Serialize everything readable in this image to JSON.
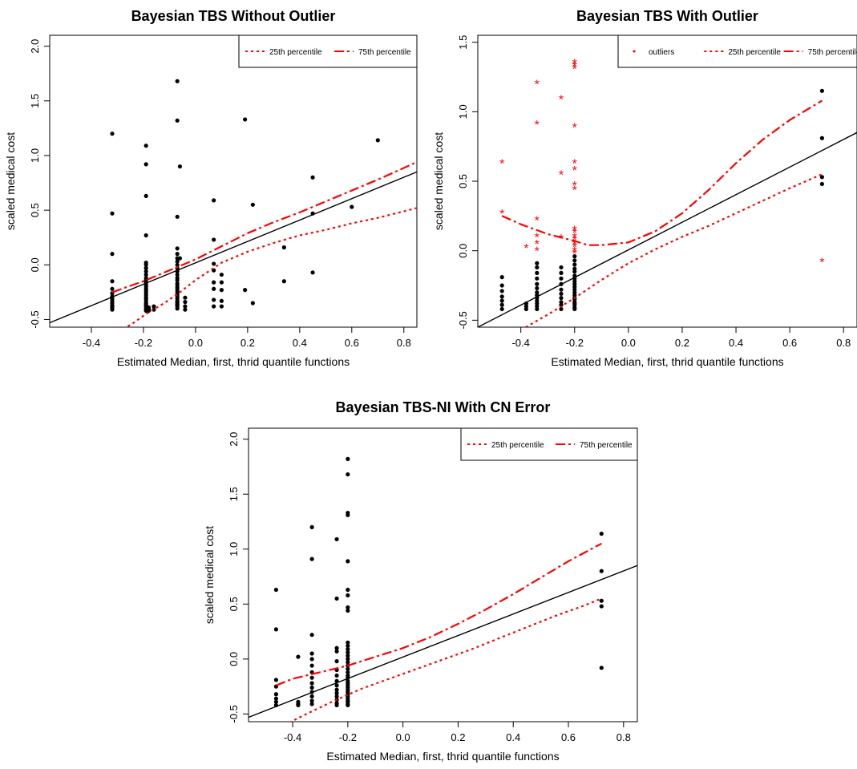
{
  "chart_data": [
    {
      "type": "scatter",
      "title": "Bayesian TBS Without Outlier",
      "xlabel": "Estimated Median, first, thrid quantile functions",
      "ylabel": "scaled medical cost",
      "xlim": [
        -0.56,
        0.85
      ],
      "ylim": [
        -0.57,
        2.1
      ],
      "xticks": [
        "-0.4",
        "-0.2",
        "0.0",
        "0.2",
        "0.4",
        "0.6",
        "0.8"
      ],
      "yticks": [
        "-0.5",
        "0.0",
        "0.5",
        "1.0",
        "1.5",
        "2.0"
      ],
      "legend": {
        "position": "top-right",
        "entries": [
          {
            "label": "25th percentile",
            "style": "dotted",
            "color": "#ff0000"
          },
          {
            "label": "75th percentile",
            "style": "dashdot",
            "color": "#ff0000"
          }
        ]
      },
      "series": [
        {
          "kind": "points",
          "color": "#000000",
          "x": [
            -0.32,
            -0.32,
            -0.32,
            -0.32,
            -0.32,
            -0.32,
            -0.32,
            -0.32,
            -0.32,
            -0.32,
            -0.32,
            -0.32,
            -0.32,
            -0.32,
            -0.32,
            -0.19,
            -0.19,
            -0.19,
            -0.19,
            -0.19,
            -0.19,
            -0.19,
            -0.19,
            -0.19,
            -0.19,
            -0.19,
            -0.19,
            -0.19,
            -0.19,
            -0.19,
            -0.19,
            -0.19,
            -0.19,
            -0.19,
            -0.19,
            -0.19,
            -0.19,
            -0.19,
            -0.19,
            -0.19,
            -0.19,
            -0.19,
            -0.19,
            -0.18,
            -0.18,
            -0.18,
            -0.18,
            -0.16,
            -0.16,
            -0.07,
            -0.07,
            -0.07,
            -0.07,
            -0.07,
            -0.07,
            -0.07,
            -0.07,
            -0.07,
            -0.07,
            -0.07,
            -0.07,
            -0.07,
            -0.07,
            -0.07,
            -0.07,
            -0.07,
            -0.07,
            -0.07,
            -0.07,
            -0.07,
            -0.07,
            -0.07,
            -0.07,
            -0.07,
            -0.07,
            -0.07,
            -0.07,
            -0.06,
            -0.06,
            -0.04,
            -0.04,
            -0.04,
            -0.04,
            0.07,
            0.07,
            0.07,
            0.07,
            0.07,
            0.07,
            0.07,
            0.07,
            0.1,
            0.1,
            0.1,
            0.1,
            0.1,
            0.19,
            0.19,
            0.22,
            0.22,
            0.34,
            0.34,
            0.45,
            0.45,
            0.45,
            0.6,
            0.7
          ],
          "y": [
            1.2,
            0.47,
            0.1,
            -0.15,
            -0.22,
            -0.26,
            -0.29,
            -0.31,
            -0.33,
            -0.35,
            -0.37,
            -0.38,
            -0.39,
            -0.4,
            -0.41,
            1.09,
            0.92,
            0.63,
            0.27,
            0.02,
            0.0,
            -0.03,
            -0.06,
            -0.09,
            -0.12,
            -0.14,
            -0.16,
            -0.18,
            -0.2,
            -0.22,
            -0.24,
            -0.26,
            -0.28,
            -0.3,
            -0.31,
            -0.33,
            -0.35,
            -0.36,
            -0.37,
            -0.38,
            -0.4,
            -0.41,
            -0.42,
            -0.39,
            -0.4,
            -0.41,
            -0.42,
            -0.38,
            -0.41,
            1.68,
            1.32,
            0.44,
            0.15,
            0.1,
            0.06,
            0.03,
            0.0,
            -0.03,
            -0.06,
            -0.09,
            -0.12,
            -0.14,
            -0.17,
            -0.19,
            -0.21,
            -0.23,
            -0.25,
            -0.27,
            -0.29,
            -0.31,
            -0.33,
            -0.34,
            -0.35,
            -0.36,
            -0.37,
            -0.38,
            -0.4,
            0.9,
            0.06,
            -0.3,
            -0.34,
            -0.38,
            -0.41,
            0.59,
            0.23,
            0.01,
            -0.05,
            -0.16,
            -0.22,
            -0.32,
            -0.38,
            -0.09,
            -0.16,
            -0.23,
            -0.33,
            -0.38,
            1.33,
            -0.23,
            0.55,
            -0.35,
            0.16,
            -0.15,
            0.8,
            0.47,
            -0.07,
            0.53,
            1.14
          ]
        },
        {
          "kind": "line",
          "name": "",
          "color": "#000000",
          "style": "solid",
          "x": [
            -0.56,
            0.85
          ],
          "y": [
            -0.53,
            0.85
          ]
        },
        {
          "kind": "line",
          "name": "25th percentile",
          "color": "#ff0000",
          "style": "dotted",
          "x": [
            -0.32,
            -0.25,
            -0.19,
            -0.12,
            -0.06,
            0.0,
            0.1,
            0.2,
            0.3,
            0.4,
            0.5,
            0.6,
            0.7,
            0.85
          ],
          "y": [
            -0.62,
            -0.55,
            -0.45,
            -0.35,
            -0.25,
            -0.14,
            0.02,
            0.12,
            0.2,
            0.27,
            0.32,
            0.38,
            0.43,
            0.52
          ]
        },
        {
          "kind": "line",
          "name": "75th percentile",
          "color": "#ff0000",
          "style": "dashdot",
          "x": [
            -0.32,
            -0.2,
            -0.1,
            0.0,
            0.1,
            0.2,
            0.3,
            0.4,
            0.5,
            0.6,
            0.7,
            0.85
          ],
          "y": [
            -0.25,
            -0.15,
            -0.05,
            0.05,
            0.17,
            0.29,
            0.39,
            0.48,
            0.58,
            0.68,
            0.78,
            0.94
          ]
        }
      ]
    },
    {
      "type": "scatter",
      "title": "Bayesian TBS With Outlier",
      "xlabel": "Estimated Median, first, thrid quantile functions",
      "ylabel": "scaled medical cost",
      "xlim": [
        -0.56,
        0.85
      ],
      "ylim": [
        -0.55,
        1.55
      ],
      "xticks": [
        "-0.4",
        "-0.2",
        "0.0",
        "0.2",
        "0.4",
        "0.6",
        "0.8"
      ],
      "yticks": [
        "-0.5",
        "0.0",
        "0.5",
        "1.0",
        "1.5"
      ],
      "legend": {
        "position": "top-right",
        "entries": [
          {
            "label": "outliers",
            "style": "point",
            "color": "#ff0000"
          },
          {
            "label": "25th percentile",
            "style": "dotted",
            "color": "#ff0000"
          },
          {
            "label": "75th percentile",
            "style": "dashdot",
            "color": "#ff0000"
          }
        ]
      },
      "series": [
        {
          "kind": "points",
          "color": "#000000",
          "x": [
            -0.47,
            -0.47,
            -0.47,
            -0.47,
            -0.47,
            -0.47,
            -0.47,
            -0.38,
            -0.38,
            -0.38,
            -0.34,
            -0.34,
            -0.34,
            -0.34,
            -0.34,
            -0.34,
            -0.34,
            -0.34,
            -0.34,
            -0.34,
            -0.34,
            -0.34,
            -0.34,
            -0.25,
            -0.25,
            -0.25,
            -0.25,
            -0.25,
            -0.25,
            -0.25,
            -0.25,
            -0.25,
            -0.25,
            -0.2,
            -0.2,
            -0.2,
            -0.2,
            -0.2,
            -0.2,
            -0.2,
            -0.2,
            -0.2,
            -0.2,
            -0.2,
            -0.2,
            -0.2,
            -0.2,
            -0.2,
            -0.2,
            -0.2,
            -0.2,
            -0.2,
            -0.2,
            0.72,
            0.72,
            0.72,
            0.72
          ],
          "y": [
            -0.19,
            -0.25,
            -0.29,
            -0.33,
            -0.36,
            -0.39,
            -0.42,
            -0.38,
            -0.4,
            -0.42,
            -0.09,
            -0.12,
            -0.16,
            -0.2,
            -0.24,
            -0.27,
            -0.3,
            -0.32,
            -0.34,
            -0.36,
            -0.38,
            -0.4,
            -0.42,
            -0.12,
            -0.16,
            -0.2,
            -0.24,
            -0.28,
            -0.31,
            -0.34,
            -0.37,
            -0.39,
            -0.42,
            -0.04,
            -0.07,
            -0.1,
            -0.13,
            -0.15,
            -0.18,
            -0.2,
            -0.22,
            -0.24,
            -0.26,
            -0.28,
            -0.3,
            -0.32,
            -0.34,
            -0.35,
            -0.37,
            -0.38,
            -0.39,
            -0.41,
            -0.42,
            1.15,
            0.81,
            0.53,
            0.48
          ]
        },
        {
          "kind": "points",
          "name": "outliers",
          "marker": "*",
          "color": "#ff0000",
          "x": [
            -0.47,
            -0.47,
            -0.38,
            -0.34,
            -0.34,
            -0.34,
            -0.34,
            -0.34,
            -0.34,
            -0.25,
            -0.25,
            -0.25,
            -0.2,
            -0.2,
            -0.2,
            -0.2,
            -0.2,
            -0.2,
            -0.2,
            -0.2,
            -0.2,
            -0.2,
            -0.2,
            -0.2,
            -0.2,
            -0.2,
            -0.2,
            -0.2,
            0.72
          ],
          "y": [
            0.63,
            0.27,
            0.02,
            1.2,
            0.91,
            0.22,
            0.1,
            0.05,
            0.0,
            1.09,
            0.55,
            0.09,
            1.35,
            1.33,
            1.31,
            0.89,
            0.63,
            0.58,
            0.47,
            0.44,
            0.15,
            0.13,
            0.1,
            0.08,
            0.05,
            0.03,
            0.0,
            -0.02,
            -0.08
          ]
        },
        {
          "kind": "line",
          "name": "",
          "color": "#000000",
          "style": "solid",
          "x": [
            -0.56,
            0.85
          ],
          "y": [
            -0.55,
            0.85
          ]
        },
        {
          "kind": "line",
          "name": "25th percentile",
          "color": "#ff0000",
          "style": "dotted",
          "x": [
            -0.4,
            -0.3,
            -0.2,
            -0.1,
            0.0,
            0.1,
            0.2,
            0.3,
            0.4,
            0.5,
            0.6,
            0.72
          ],
          "y": [
            -0.57,
            -0.46,
            -0.34,
            -0.21,
            -0.09,
            0.01,
            0.1,
            0.18,
            0.27,
            0.36,
            0.45,
            0.55
          ]
        },
        {
          "kind": "line",
          "name": "75th percentile",
          "color": "#ff0000",
          "style": "dashdot",
          "x": [
            -0.47,
            -0.4,
            -0.3,
            -0.2,
            -0.15,
            -0.1,
            0.0,
            0.1,
            0.2,
            0.3,
            0.4,
            0.5,
            0.6,
            0.72
          ],
          "y": [
            0.25,
            0.19,
            0.12,
            0.07,
            0.04,
            0.04,
            0.06,
            0.14,
            0.27,
            0.44,
            0.63,
            0.8,
            0.94,
            1.08
          ]
        }
      ]
    },
    {
      "type": "scatter",
      "title": "Bayesian TBS-NI With CN Error",
      "xlabel": "Estimated Median, first, thrid quantile functions",
      "ylabel": "scaled medical cost",
      "xlim": [
        -0.56,
        0.85
      ],
      "ylim": [
        -0.57,
        2.1
      ],
      "xticks": [
        "-0.4",
        "-0.2",
        "0.0",
        "0.2",
        "0.4",
        "0.6",
        "0.8"
      ],
      "yticks": [
        "-0.5",
        "0.0",
        "0.5",
        "1.0",
        "1.5",
        "2.0"
      ],
      "legend": {
        "position": "top-right",
        "entries": [
          {
            "label": "25th percentile",
            "style": "dotted",
            "color": "#ff0000"
          },
          {
            "label": "75th percentile",
            "style": "dashdot",
            "color": "#ff0000"
          }
        ]
      },
      "series": [
        {
          "kind": "points",
          "color": "#000000",
          "x": [
            -0.46,
            -0.46,
            -0.46,
            -0.46,
            -0.46,
            -0.46,
            -0.46,
            -0.46,
            -0.38,
            -0.38,
            -0.38,
            -0.38,
            -0.33,
            -0.33,
            -0.33,
            -0.33,
            -0.33,
            -0.33,
            -0.33,
            -0.33,
            -0.33,
            -0.33,
            -0.33,
            -0.33,
            -0.33,
            -0.33,
            -0.24,
            -0.24,
            -0.24,
            -0.24,
            -0.24,
            -0.24,
            -0.24,
            -0.24,
            -0.24,
            -0.24,
            -0.24,
            -0.24,
            -0.24,
            -0.24,
            -0.24,
            -0.2,
            -0.2,
            -0.2,
            -0.2,
            -0.2,
            -0.2,
            -0.2,
            -0.2,
            -0.2,
            -0.2,
            -0.2,
            -0.2,
            -0.2,
            -0.2,
            -0.2,
            -0.2,
            -0.2,
            -0.2,
            -0.2,
            -0.2,
            -0.2,
            -0.2,
            -0.2,
            -0.2,
            -0.2,
            -0.2,
            -0.2,
            -0.2,
            -0.2,
            -0.2,
            -0.2,
            -0.2,
            -0.2,
            -0.2,
            0.72,
            0.72,
            0.72,
            0.72,
            0.72
          ],
          "y": [
            0.63,
            0.27,
            -0.19,
            -0.25,
            -0.32,
            -0.36,
            -0.39,
            -0.42,
            0.02,
            -0.39,
            -0.41,
            -0.42,
            1.2,
            0.91,
            0.22,
            0.05,
            0.0,
            -0.06,
            -0.12,
            -0.17,
            -0.22,
            -0.26,
            -0.3,
            -0.34,
            -0.38,
            -0.41,
            1.09,
            0.55,
            0.1,
            0.07,
            -0.02,
            -0.1,
            -0.15,
            -0.2,
            -0.24,
            -0.28,
            -0.31,
            -0.34,
            -0.37,
            -0.4,
            -0.42,
            1.82,
            1.68,
            1.33,
            1.31,
            0.89,
            0.63,
            0.58,
            0.47,
            0.44,
            0.15,
            0.12,
            0.09,
            0.06,
            0.03,
            0.0,
            -0.03,
            -0.06,
            -0.09,
            -0.12,
            -0.15,
            -0.17,
            -0.2,
            -0.22,
            -0.24,
            -0.26,
            -0.28,
            -0.3,
            -0.32,
            -0.34,
            -0.36,
            -0.38,
            -0.39,
            -0.41,
            -0.42,
            1.14,
            0.8,
            0.53,
            0.48,
            -0.08
          ]
        },
        {
          "kind": "line",
          "name": "",
          "color": "#000000",
          "style": "solid",
          "x": [
            -0.56,
            0.85
          ],
          "y": [
            -0.53,
            0.85
          ]
        },
        {
          "kind": "line",
          "name": "25th percentile",
          "color": "#ff0000",
          "style": "dotted",
          "x": [
            -0.43,
            -0.35,
            -0.25,
            -0.15,
            -0.05,
            0.05,
            0.15,
            0.25,
            0.35,
            0.45,
            0.55,
            0.65,
            0.72
          ],
          "y": [
            -0.6,
            -0.5,
            -0.38,
            -0.27,
            -0.18,
            -0.09,
            0.0,
            0.09,
            0.19,
            0.29,
            0.39,
            0.48,
            0.55
          ]
        },
        {
          "kind": "line",
          "name": "75th percentile",
          "color": "#ff0000",
          "style": "dashdot",
          "x": [
            -0.46,
            -0.4,
            -0.3,
            -0.2,
            -0.1,
            0.0,
            0.1,
            0.2,
            0.3,
            0.4,
            0.5,
            0.6,
            0.72
          ],
          "y": [
            -0.24,
            -0.18,
            -0.12,
            -0.06,
            0.02,
            0.1,
            0.2,
            0.32,
            0.45,
            0.59,
            0.74,
            0.89,
            1.05
          ]
        }
      ]
    }
  ]
}
